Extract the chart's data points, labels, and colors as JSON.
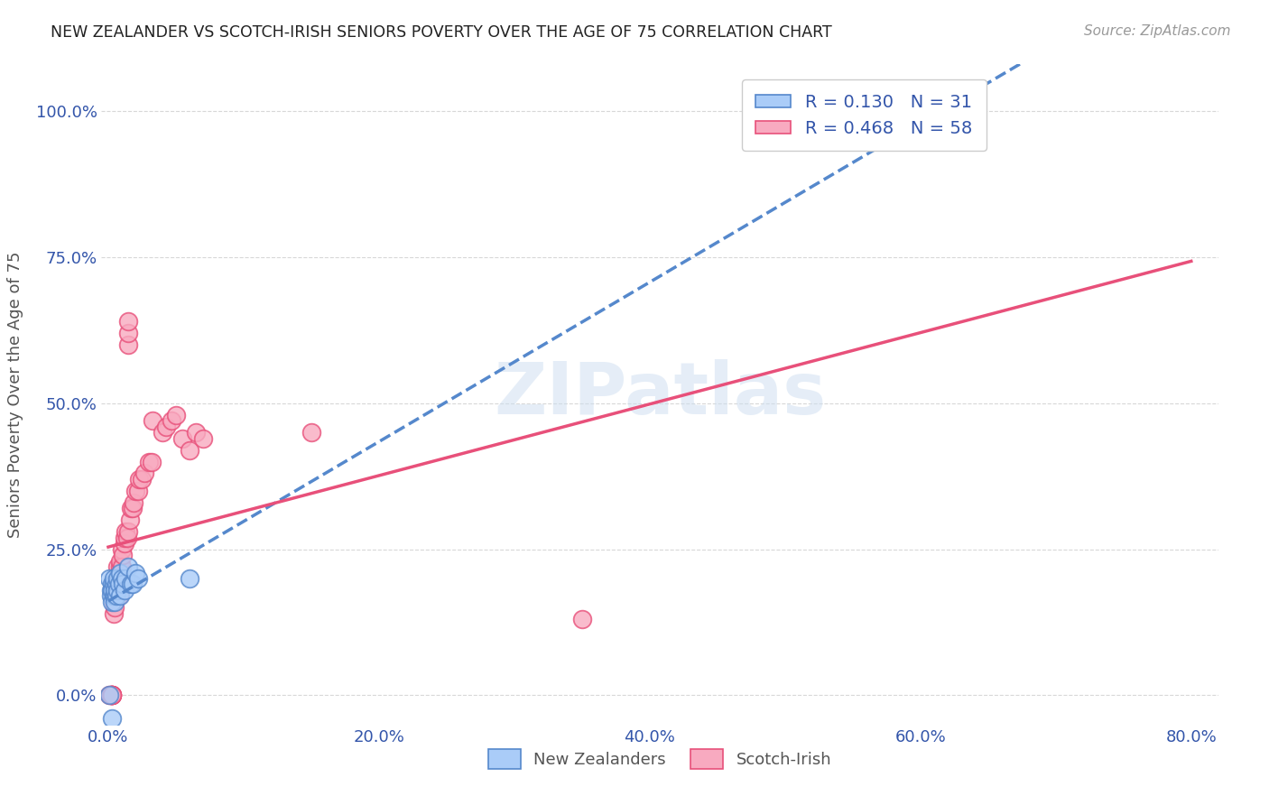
{
  "title": "NEW ZEALANDER VS SCOTCH-IRISH SENIORS POVERTY OVER THE AGE OF 75 CORRELATION CHART",
  "source": "Source: ZipAtlas.com",
  "xlabel_ticks": [
    "0.0%",
    "20.0%",
    "40.0%",
    "60.0%",
    "80.0%"
  ],
  "ylabel_ticks": [
    "0.0%",
    "25.0%",
    "50.0%",
    "75.0%",
    "100.0%"
  ],
  "xlim": [
    -0.005,
    0.82
  ],
  "ylim": [
    -0.05,
    1.08
  ],
  "ylabel": "Seniors Poverty Over the Age of 75",
  "legend_r1": "R = 0.130",
  "legend_n1": "N = 31",
  "legend_r2": "R = 0.468",
  "legend_n2": "N = 58",
  "nz_color": "#aaccf8",
  "scotch_color": "#f8aac0",
  "nz_edge_color": "#5588cc",
  "scotch_edge_color": "#e8507a",
  "nz_line_color": "#5588cc",
  "scotch_line_color": "#e8507a",
  "watermark": "ZIPatlas",
  "background_color": "#ffffff",
  "grid_color": "#d8d8d8",
  "title_color": "#222222",
  "axis_label_color": "#3355aa",
  "nz_x": [
    0.001,
    0.002,
    0.002,
    0.003,
    0.003,
    0.003,
    0.004,
    0.004,
    0.004,
    0.005,
    0.005,
    0.005,
    0.006,
    0.006,
    0.007,
    0.007,
    0.008,
    0.009,
    0.009,
    0.01,
    0.011,
    0.012,
    0.013,
    0.015,
    0.017,
    0.018,
    0.02,
    0.022,
    0.06,
    0.001,
    0.003
  ],
  "nz_y": [
    0.2,
    0.18,
    0.17,
    0.19,
    0.18,
    0.16,
    0.17,
    0.19,
    0.2,
    0.17,
    0.18,
    0.16,
    0.19,
    0.17,
    0.18,
    0.2,
    0.19,
    0.17,
    0.21,
    0.2,
    0.19,
    0.18,
    0.2,
    0.22,
    0.19,
    0.19,
    0.21,
    0.2,
    0.2,
    0.0,
    -0.04
  ],
  "scotch_x": [
    0.001,
    0.002,
    0.002,
    0.003,
    0.003,
    0.003,
    0.003,
    0.003,
    0.004,
    0.004,
    0.004,
    0.005,
    0.005,
    0.005,
    0.006,
    0.006,
    0.006,
    0.007,
    0.007,
    0.007,
    0.008,
    0.008,
    0.008,
    0.009,
    0.009,
    0.01,
    0.01,
    0.011,
    0.012,
    0.012,
    0.013,
    0.014,
    0.015,
    0.016,
    0.017,
    0.018,
    0.019,
    0.02,
    0.022,
    0.023,
    0.025,
    0.027,
    0.03,
    0.032,
    0.033,
    0.04,
    0.043,
    0.047,
    0.05,
    0.055,
    0.06,
    0.065,
    0.07,
    0.15,
    0.35,
    0.015,
    0.015,
    0.015
  ],
  "scotch_y": [
    0.0,
    0.0,
    0.0,
    0.0,
    0.0,
    0.0,
    0.0,
    0.0,
    0.14,
    0.16,
    0.17,
    0.15,
    0.17,
    0.18,
    0.17,
    0.17,
    0.19,
    0.2,
    0.2,
    0.22,
    0.17,
    0.21,
    0.2,
    0.22,
    0.23,
    0.25,
    0.22,
    0.24,
    0.26,
    0.27,
    0.28,
    0.27,
    0.28,
    0.3,
    0.32,
    0.32,
    0.33,
    0.35,
    0.35,
    0.37,
    0.37,
    0.38,
    0.4,
    0.4,
    0.47,
    0.45,
    0.46,
    0.47,
    0.48,
    0.44,
    0.42,
    0.45,
    0.44,
    0.45,
    0.13,
    0.6,
    0.62,
    0.64
  ]
}
